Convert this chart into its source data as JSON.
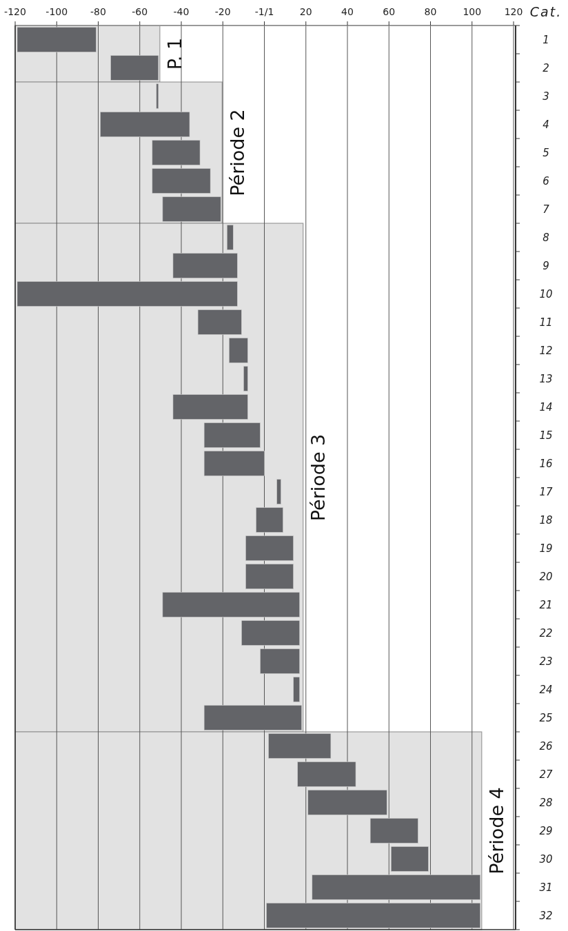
{
  "chart_data": {
    "type": "bar",
    "orientation": "horizontal",
    "ylabel": "Cat.",
    "categories": [
      "1",
      "2",
      "3",
      "4",
      "5",
      "6",
      "7",
      "8",
      "9",
      "10",
      "11",
      "12",
      "13",
      "14",
      "15",
      "16",
      "17",
      "18",
      "19",
      "20",
      "21",
      "22",
      "23",
      "24",
      "25",
      "26",
      "27",
      "28",
      "29",
      "30",
      "31",
      "32"
    ],
    "base": [
      -119,
      -74,
      -52,
      -79,
      -54,
      -54,
      -49,
      -18,
      -44,
      -119,
      -32,
      -17,
      -10,
      -44,
      -29,
      -29,
      6,
      -4,
      -9,
      -9,
      -49,
      -11,
      -2,
      14,
      -29,
      2,
      16,
      21,
      51,
      61,
      23,
      1
    ],
    "values": [
      38,
      23,
      1,
      43,
      23,
      28,
      28,
      3,
      31,
      106,
      21,
      9,
      2,
      36,
      27,
      29,
      2,
      13,
      23,
      23,
      66,
      28,
      19,
      3,
      47,
      30,
      28,
      38,
      23,
      18,
      81,
      103
    ],
    "color": "#636468",
    "xlim": [
      -120,
      120
    ],
    "xticks": [
      -120,
      -100,
      -80,
      -60,
      -40,
      -20,
      {
        "value": 0,
        "label": "-1/1"
      },
      20,
      40,
      60,
      80,
      100,
      120
    ],
    "grid": "x",
    "bands": [
      {
        "axis": "y",
        "from": "1",
        "to": "2",
        "label": "P. 1",
        "color": "#e2e2e2"
      },
      {
        "axis": "y",
        "from": "3",
        "to": "7",
        "label": "Période 2",
        "color": "#e2e2e2"
      },
      {
        "axis": "y",
        "from": "8",
        "to": "25",
        "label": "Période 3",
        "color": "#e2e2e2"
      },
      {
        "axis": "y",
        "from": "26",
        "to": "32",
        "label": "Période 4",
        "color": "#e2e2e2"
      }
    ]
  }
}
